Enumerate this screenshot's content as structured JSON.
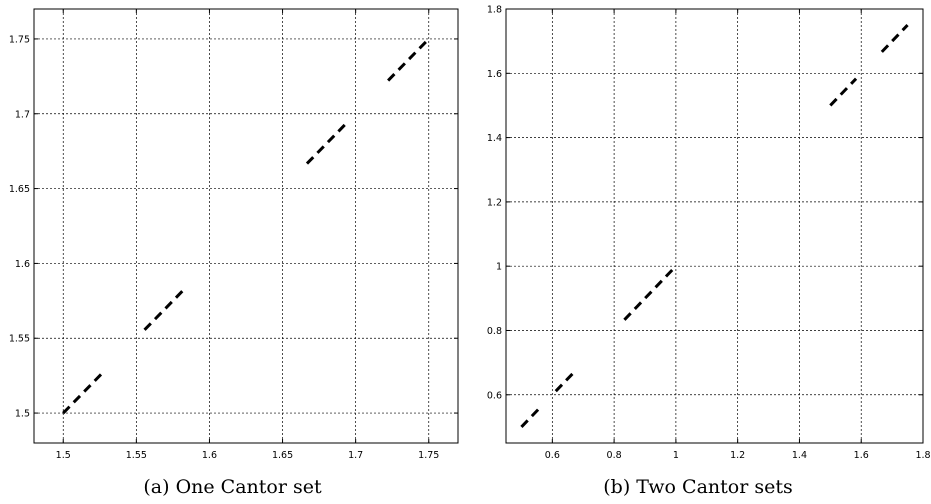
{
  "chart_data": [
    {
      "type": "line",
      "caption": "(a) One Cantor set",
      "xlim": [
        1.48,
        1.77
      ],
      "ylim": [
        1.48,
        1.77
      ],
      "grid": true,
      "line_style": "dashed",
      "line_color": "#000000",
      "xticks": [
        1.5,
        1.55,
        1.6,
        1.65,
        1.7,
        1.75
      ],
      "xtick_labels": [
        "1.5",
        "1.55",
        "1.6",
        "1.65",
        "1.7",
        "1.75"
      ],
      "yticks": [
        1.5,
        1.55,
        1.6,
        1.65,
        1.7,
        1.75
      ],
      "ytick_labels": [
        "1.5",
        "1.55",
        "1.6",
        "1.65",
        "1.7",
        "1.75"
      ],
      "segments": [
        {
          "x": [
            1.5,
            1.5278
          ],
          "y": [
            1.5,
            1.5278
          ]
        },
        {
          "x": [
            1.5556,
            1.5833
          ],
          "y": [
            1.5556,
            1.5833
          ]
        },
        {
          "x": [
            1.6667,
            1.6944
          ],
          "y": [
            1.6667,
            1.6944
          ]
        },
        {
          "x": [
            1.7222,
            1.75
          ],
          "y": [
            1.7222,
            1.75
          ]
        }
      ]
    },
    {
      "type": "line",
      "caption": "(b) Two Cantor sets",
      "xlim": [
        0.45,
        1.8
      ],
      "ylim": [
        0.45,
        1.8
      ],
      "grid": true,
      "line_style": "dashed",
      "line_color": "#000000",
      "xticks": [
        0.6,
        0.8,
        1.0,
        1.2,
        1.4,
        1.6,
        1.8
      ],
      "xtick_labels": [
        "0.6",
        "0.8",
        "1",
        "1.2",
        "1.4",
        "1.6",
        "1.8"
      ],
      "yticks": [
        0.6,
        0.8,
        1.0,
        1.2,
        1.4,
        1.6,
        1.8
      ],
      "ytick_labels": [
        "0.6",
        "0.8",
        "1",
        "1.2",
        "1.4",
        "1.6",
        "1.8"
      ],
      "segments": [
        {
          "x": [
            0.5,
            0.5556
          ],
          "y": [
            0.5,
            0.5556
          ]
        },
        {
          "x": [
            0.6111,
            0.6667
          ],
          "y": [
            0.6111,
            0.6667
          ]
        },
        {
          "x": [
            0.8333,
            1.0
          ],
          "y": [
            0.8333,
            1.0
          ]
        },
        {
          "x": [
            1.5,
            1.5833
          ],
          "y": [
            1.5,
            1.5833
          ]
        },
        {
          "x": [
            1.6667,
            1.75
          ],
          "y": [
            1.6667,
            1.75
          ]
        }
      ]
    }
  ]
}
